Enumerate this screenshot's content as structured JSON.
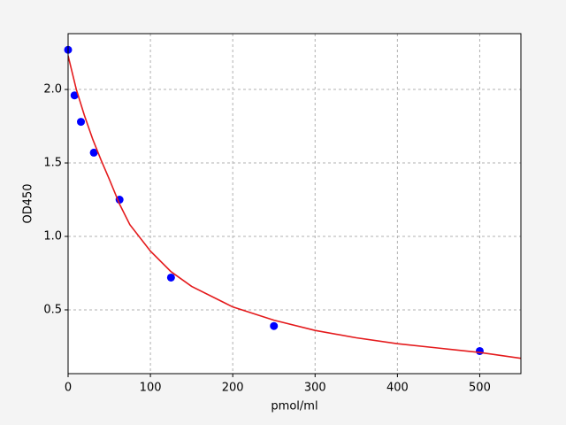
{
  "chart_data": {
    "type": "scatter",
    "xlabel": "pmol/ml",
    "ylabel": "OD450",
    "xlim": [
      0,
      550
    ],
    "ylim": [
      0.066,
      2.38
    ],
    "xticks": [
      0,
      100,
      200,
      300,
      400,
      500
    ],
    "yticks": [
      0.5,
      {
        "value": 1,
        "label": "1.0"
      },
      1.5,
      {
        "value": 2,
        "label": "2.0"
      }
    ],
    "grid": true,
    "series": [
      {
        "mode": "markers",
        "color": "#0000ff",
        "x": [
          0,
          7.8,
          15.6,
          31.25,
          62.5,
          125,
          250,
          500
        ],
        "values": [
          2.27,
          1.96,
          1.78,
          1.57,
          1.25,
          0.72,
          0.39,
          0.22
        ]
      },
      {
        "mode": "line",
        "color": "#e41a1c",
        "x": [
          0,
          10,
          20,
          30,
          40,
          50,
          62.5,
          75,
          100,
          125,
          150,
          200,
          250,
          300,
          350,
          400,
          450,
          500,
          550
        ],
        "values": [
          2.23,
          2.0,
          1.82,
          1.66,
          1.52,
          1.39,
          1.22,
          1.08,
          0.9,
          0.76,
          0.66,
          0.52,
          0.43,
          0.36,
          0.31,
          0.27,
          0.24,
          0.21,
          0.17
        ]
      }
    ]
  }
}
